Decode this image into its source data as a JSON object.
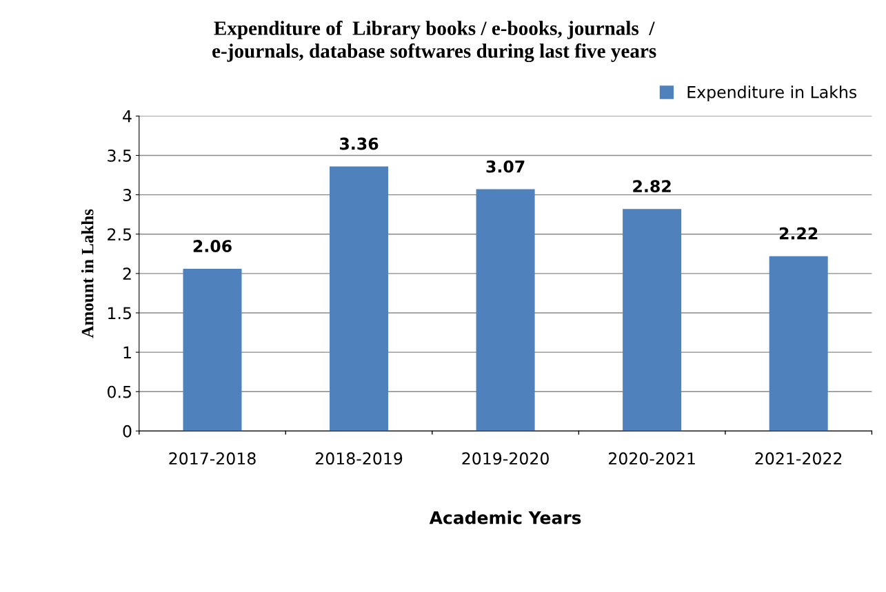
{
  "chart_data": {
    "type": "bar",
    "title": "Expenditure of  Library books / e-books, journals  /\ne-journals, database softwares during last five years",
    "xlabel": "Academic Years",
    "ylabel": "Amount in Lakhs",
    "categories": [
      "2017-2018",
      "2018-2019",
      "2019-2020",
      "2020-2021",
      "2021-2022"
    ],
    "series": [
      {
        "name": "Expenditure in Lakhs",
        "color": "#4f81bd",
        "values": [
          2.06,
          3.36,
          3.07,
          2.82,
          2.22
        ]
      }
    ],
    "ylim": [
      0,
      4
    ],
    "yticks": [
      0,
      0.5,
      1,
      1.5,
      2,
      2.5,
      3,
      3.5,
      4
    ],
    "grid": "y",
    "legend": "top right",
    "data_labels": true
  }
}
